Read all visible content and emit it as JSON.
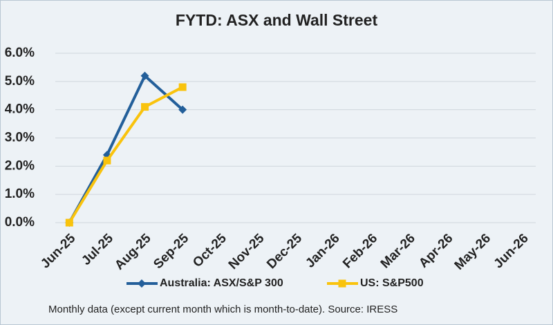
{
  "chart_data": {
    "type": "line",
    "title": "FYTD: ASX and Wall Street",
    "categories": [
      "Jun-25",
      "Jul-25",
      "Aug-25",
      "Sep-25",
      "Oct-25",
      "Nov-25",
      "Dec-25",
      "Jan-26",
      "Feb-26",
      "Mar-26",
      "Apr-26",
      "May-26",
      "Jun-26"
    ],
    "series": [
      {
        "name": "Australia: ASX/S&P 300",
        "color": "#235f9a",
        "marker": "diamond",
        "values": [
          0,
          2.4,
          5.2,
          4.0,
          null,
          null,
          null,
          null,
          null,
          null,
          null,
          null,
          null
        ]
      },
      {
        "name": "US: S&P500",
        "color": "#f9c30d",
        "marker": "square",
        "values": [
          0,
          2.2,
          4.1,
          4.8,
          null,
          null,
          null,
          null,
          null,
          null,
          null,
          null,
          null
        ]
      }
    ],
    "ylim": [
      0,
      6
    ],
    "yticks": [
      {
        "value": 0,
        "label": "0.0%"
      },
      {
        "value": 1,
        "label": "1.0%"
      },
      {
        "value": 2,
        "label": "2.0%"
      },
      {
        "value": 3,
        "label": "3.0%"
      },
      {
        "value": 4,
        "label": "4.0%"
      },
      {
        "value": 5,
        "label": "5.0%"
      },
      {
        "value": 6,
        "label": "6.0%"
      }
    ],
    "grid": true,
    "legend": "bottom",
    "note": "Monthly data (except current month which is month-to-date).  Source: IRESS"
  }
}
